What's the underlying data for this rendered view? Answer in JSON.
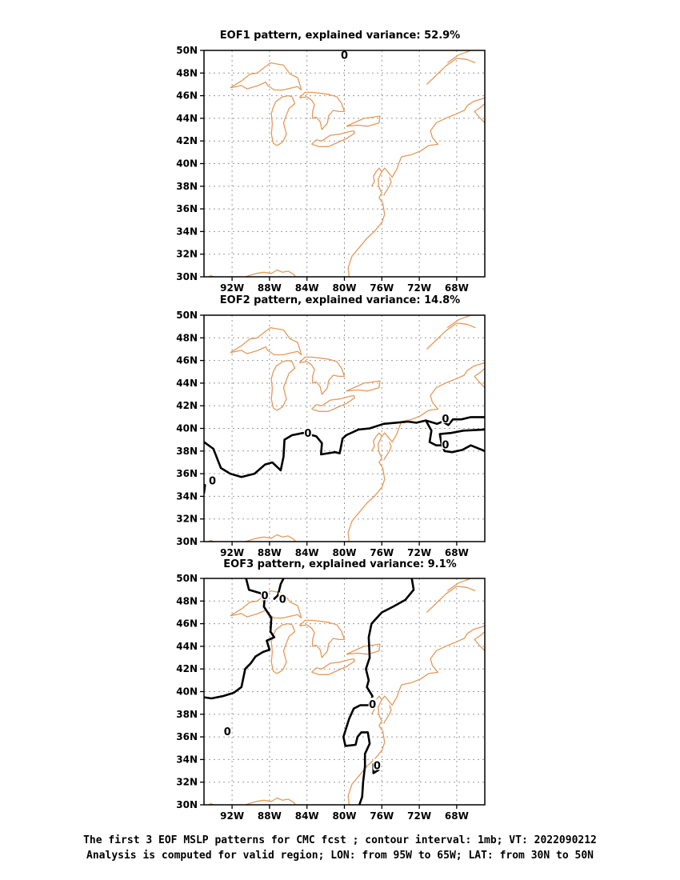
{
  "chart_data": [
    {
      "type": "contour-map",
      "title": "EOF1 pattern, explained variance: 52.9%",
      "lon_ticks": [
        "92W",
        "88W",
        "84W",
        "80W",
        "76W",
        "72W",
        "68W"
      ],
      "lat_ticks": [
        "30N",
        "32N",
        "34N",
        "36N",
        "38N",
        "40N",
        "42N",
        "44N",
        "46N",
        "48N",
        "50N"
      ],
      "lon_range": [
        -95,
        -65
      ],
      "lat_range": [
        30,
        50
      ],
      "grid": true,
      "contour_labels": [
        "0"
      ]
    },
    {
      "type": "contour-map",
      "title": "EOF2 pattern, explained variance: 14.8%",
      "lon_ticks": [
        "92W",
        "88W",
        "84W",
        "80W",
        "76W",
        "72W",
        "68W"
      ],
      "lat_ticks": [
        "30N",
        "32N",
        "34N",
        "36N",
        "38N",
        "40N",
        "42N",
        "44N",
        "46N",
        "48N",
        "50N"
      ],
      "lon_range": [
        -95,
        -65
      ],
      "lat_range": [
        30,
        50
      ],
      "grid": true,
      "contour_labels": [
        "0",
        "0",
        "0",
        "0"
      ]
    },
    {
      "type": "contour-map",
      "title": "EOF3 pattern, explained variance: 9.1%",
      "lon_ticks": [
        "92W",
        "88W",
        "84W",
        "80W",
        "76W",
        "72W",
        "68W"
      ],
      "lat_ticks": [
        "30N",
        "32N",
        "34N",
        "36N",
        "38N",
        "40N",
        "42N",
        "44N",
        "46N",
        "48N",
        "50N"
      ],
      "lon_range": [
        -95,
        -65
      ],
      "lat_range": [
        30,
        50
      ],
      "grid": true,
      "contour_labels": [
        "0",
        "0",
        "0",
        "0",
        "0"
      ]
    }
  ],
  "caption": {
    "line1": "The first 3 EOF MSLP patterns for CMC fcst ; contour interval: 1mb; VT: 2022090212",
    "line2": "Analysis is computed for valid region; LON: from 95W to 65W; LAT: from 30N to 50N"
  },
  "colors": {
    "coastline": "#e39a5c",
    "contour": "#000000",
    "grid": "#999999",
    "frame": "#000000"
  }
}
